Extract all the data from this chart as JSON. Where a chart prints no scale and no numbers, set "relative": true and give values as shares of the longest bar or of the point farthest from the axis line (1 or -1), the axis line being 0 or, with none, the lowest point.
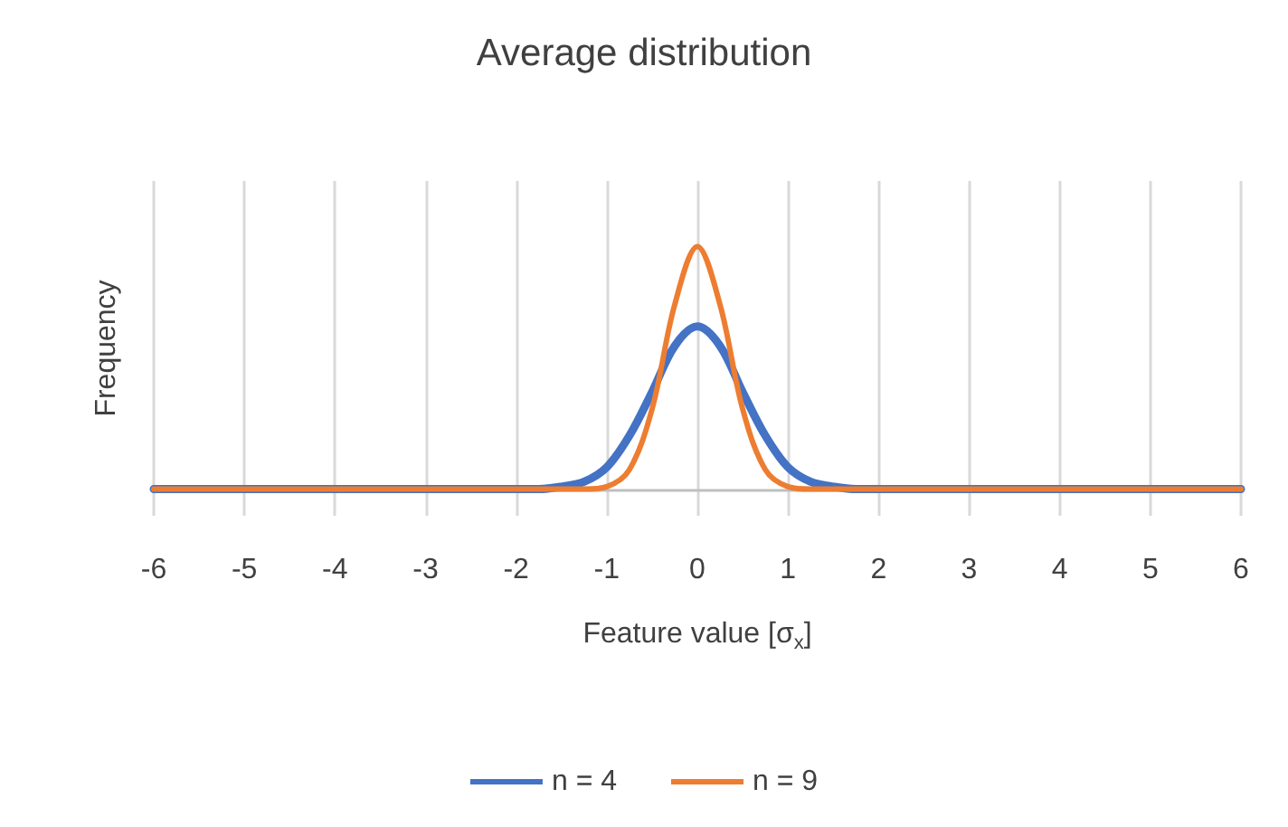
{
  "chart_data": {
    "type": "line",
    "title": "Average distribution",
    "xlabel": "Feature value [σ$_{x}$]",
    "ylabel": "Frequency",
    "relative": true,
    "x": [
      -6,
      -2,
      -1.75,
      -1.5,
      -1.25,
      -1,
      -0.75,
      -0.5,
      -0.25,
      0,
      0.25,
      0.5,
      0.75,
      1,
      1.25,
      1.5,
      1.75,
      2,
      6
    ],
    "xlim": [
      -6,
      6
    ],
    "xticks": [
      -6,
      -5,
      -4,
      -3,
      -2,
      -1,
      0,
      1,
      2,
      3,
      4,
      5,
      6
    ],
    "grid": "x",
    "legend": "bottom",
    "marker": "none",
    "line_style": "solid",
    "series": [
      {
        "name": "n = 4",
        "color": "#4472c4",
        "values": [
          0,
          0,
          0,
          0.01,
          0.03,
          0.09,
          0.22,
          0.4,
          0.59,
          0.67,
          0.59,
          0.4,
          0.22,
          0.09,
          0.03,
          0.01,
          0,
          0,
          0
        ]
      },
      {
        "name": "n = 9",
        "color": "#ed7d31",
        "values": [
          0,
          0,
          0,
          0,
          0,
          0.01,
          0.08,
          0.33,
          0.76,
          1,
          0.76,
          0.33,
          0.08,
          0.01,
          0,
          0,
          0,
          0,
          0
        ]
      }
    ]
  }
}
